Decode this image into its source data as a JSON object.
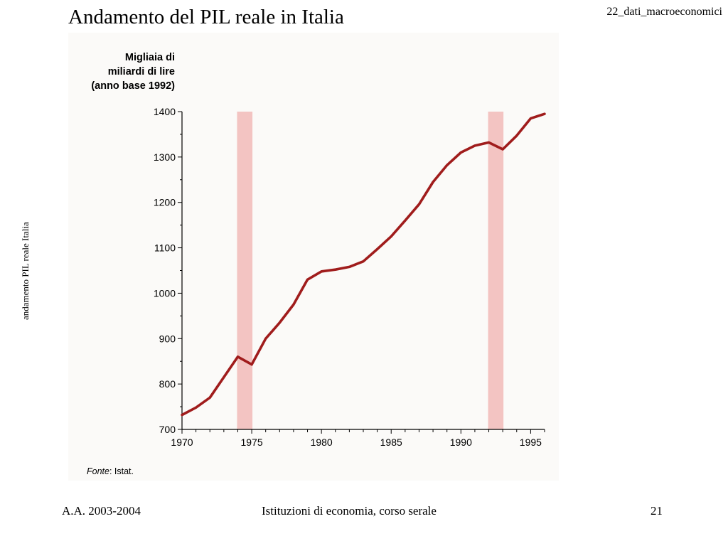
{
  "slide": {
    "title": "Andamento del PIL reale in Italia",
    "file_tag": "22_dati_macroeconomici",
    "side_label": "andamento PIL reale Italia"
  },
  "footer": {
    "left": "A.A. 2003-2004",
    "center": "Istituzioni di economia, corso serale",
    "page": "21"
  },
  "chart_data": {
    "type": "line",
    "ylabel_lines": [
      "Migliaia di",
      "miliardi di lire",
      "(anno base 1992)"
    ],
    "source_label": "Fonte",
    "source_text": ": Istat.",
    "x": [
      1970,
      1971,
      1972,
      1973,
      1974,
      1975,
      1976,
      1977,
      1978,
      1979,
      1980,
      1981,
      1982,
      1983,
      1984,
      1985,
      1986,
      1987,
      1988,
      1989,
      1990,
      1991,
      1992,
      1993,
      1994,
      1995,
      1996
    ],
    "series": [
      {
        "values": [
          732,
          748,
          770,
          815,
          860,
          843,
          900,
          935,
          975,
          1030,
          1048,
          1052,
          1058,
          1070,
          1097,
          1125,
          1160,
          1196,
          1245,
          1282,
          1310,
          1325,
          1332,
          1317,
          1347,
          1385,
          1395
        ],
        "color": "#a01c1c"
      }
    ],
    "xticks": [
      "1970",
      "1975",
      "1980",
      "1985",
      "1990",
      "1995"
    ],
    "yticks": [
      "700",
      "800",
      "900",
      "1000",
      "1100",
      "1200",
      "1300",
      "1400"
    ],
    "xlim": [
      1970,
      1996
    ],
    "ylim": [
      700,
      1400
    ],
    "shaded_periods": [
      [
        1974,
        1975
      ],
      [
        1992,
        1993
      ]
    ],
    "shade_color": "#f3c4c2",
    "grid": false
  }
}
